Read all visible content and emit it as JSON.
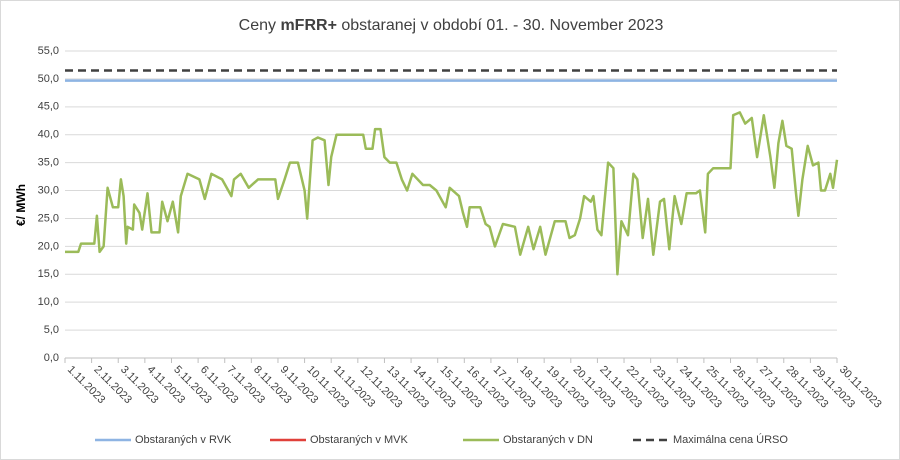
{
  "chart_data": {
    "type": "line",
    "title": [
      {
        "text": "Ceny ",
        "bold": false
      },
      {
        "text": "mFRR+",
        "bold": true
      },
      {
        "text": " obstaranej v období 01. - 30. November 2023",
        "bold": false
      }
    ],
    "y_label": "€/ MWh",
    "xlim": [
      1,
      30
    ],
    "xticks": [
      {
        "value": 1,
        "label": "1.11.2023"
      },
      {
        "value": 2,
        "label": "2.11.2023"
      },
      {
        "value": 3,
        "label": "3.11.2023"
      },
      {
        "value": 4,
        "label": "4.11.2023"
      },
      {
        "value": 5,
        "label": "5.11.2023"
      },
      {
        "value": 6,
        "label": "6.11.2023"
      },
      {
        "value": 7,
        "label": "7.11.2023"
      },
      {
        "value": 8,
        "label": "8.11.2023"
      },
      {
        "value": 9,
        "label": "9.11.2023"
      },
      {
        "value": 10,
        "label": "10.11.2023"
      },
      {
        "value": 11,
        "label": "11.11.2023"
      },
      {
        "value": 12,
        "label": "12.11.2023"
      },
      {
        "value": 13,
        "label": "13.11.2023"
      },
      {
        "value": 14,
        "label": "14.11.2023"
      },
      {
        "value": 15,
        "label": "15.11.2023"
      },
      {
        "value": 16,
        "label": "16.11.2023"
      },
      {
        "value": 17,
        "label": "17.11.2023"
      },
      {
        "value": 18,
        "label": "18.11.2023"
      },
      {
        "value": 19,
        "label": "19.11.2023"
      },
      {
        "value": 20,
        "label": "20.11.2023"
      },
      {
        "value": 21,
        "label": "21.11.2023"
      },
      {
        "value": 22,
        "label": "22.11.2023"
      },
      {
        "value": 23,
        "label": "23.11.2023"
      },
      {
        "value": 24,
        "label": "24.11.2023"
      },
      {
        "value": 25,
        "label": "25.11.2023"
      },
      {
        "value": 26,
        "label": "26.11.2023"
      },
      {
        "value": 27,
        "label": "27.11.2023"
      },
      {
        "value": 28,
        "label": "28.11.2023"
      },
      {
        "value": 29,
        "label": "29.11.2023"
      },
      {
        "value": 30,
        "label": "30.11.2023"
      }
    ],
    "ylim": [
      0,
      55
    ],
    "yticks": [
      {
        "value": 0,
        "label": "0,0"
      },
      {
        "value": 5,
        "label": "5,0"
      },
      {
        "value": 10,
        "label": "10,0"
      },
      {
        "value": 15,
        "label": "15,0"
      },
      {
        "value": 20,
        "label": "20,0"
      },
      {
        "value": 25,
        "label": "25,0"
      },
      {
        "value": 30,
        "label": "30,0"
      },
      {
        "value": 35,
        "label": "35,0"
      },
      {
        "value": 40,
        "label": "40,0"
      },
      {
        "value": 45,
        "label": "45,0"
      },
      {
        "value": 50,
        "label": "50,0"
      },
      {
        "value": 55,
        "label": "55,0"
      }
    ],
    "grid": true,
    "legend": "bottom",
    "series": [
      {
        "name": "Obstaraných v RVK",
        "color": "#8eb4e3",
        "dash": false,
        "x": [
          1,
          30
        ],
        "values": [
          49.7,
          49.7
        ]
      },
      {
        "name": "Obstaraných v MVK",
        "color": "#e0403a",
        "dash": false,
        "x": [],
        "values": []
      },
      {
        "name": "Obstaraných v DN",
        "color": "#9bbb59",
        "dash": false,
        "x": [
          1.0,
          1.5,
          1.6,
          2.1,
          2.2,
          2.3,
          2.45,
          2.6,
          2.8,
          3.0,
          3.1,
          3.2,
          3.3,
          3.35,
          3.55,
          3.6,
          3.8,
          3.9,
          4.1,
          4.25,
          4.55,
          4.65,
          4.85,
          5.05,
          5.25,
          5.35,
          5.6,
          6.05,
          6.25,
          6.5,
          6.9,
          7.25,
          7.35,
          7.6,
          7.9,
          8.25,
          8.9,
          9.0,
          9.25,
          9.45,
          9.75,
          10.0,
          10.1,
          10.3,
          10.5,
          10.75,
          10.9,
          11.0,
          11.2,
          12.2,
          12.3,
          12.55,
          12.65,
          12.85,
          13.0,
          13.2,
          13.45,
          13.65,
          13.85,
          14.05,
          14.45,
          14.7,
          14.95,
          15.3,
          15.45,
          15.8,
          15.95,
          16.1,
          16.2,
          16.6,
          16.8,
          16.95,
          17.15,
          17.45,
          17.9,
          18.1,
          18.4,
          18.6,
          18.85,
          19.05,
          19.4,
          19.8,
          19.95,
          20.15,
          20.35,
          20.5,
          20.75,
          20.85,
          21.0,
          21.15,
          21.4,
          21.6,
          21.75,
          21.9,
          22.15,
          22.35,
          22.5,
          22.7,
          22.9,
          23.1,
          23.35,
          23.5,
          23.7,
          23.9,
          24.15,
          24.35,
          24.7,
          24.85,
          25.05,
          25.15,
          25.35,
          26.0,
          26.1,
          26.35,
          26.55,
          26.8,
          27.0,
          27.25,
          27.5,
          27.65,
          27.8,
          27.95,
          28.1,
          28.3,
          28.45,
          28.55,
          28.7,
          28.9,
          29.1,
          29.3,
          29.4,
          29.55,
          29.75,
          29.85,
          30.0
        ],
        "values": [
          19,
          19,
          20.5,
          20.5,
          25.5,
          19,
          20,
          30.5,
          27,
          27,
          32,
          29,
          20.5,
          23.5,
          23,
          27.5,
          26,
          23,
          29.5,
          22.5,
          22.5,
          28,
          24.5,
          28,
          22.5,
          29,
          33,
          32,
          28.5,
          33,
          32,
          29,
          32,
          33,
          30.5,
          32,
          32,
          28.5,
          32,
          35,
          35,
          30,
          25,
          39,
          39.5,
          39,
          31,
          36,
          40,
          40,
          37.5,
          37.5,
          41,
          41,
          36,
          35,
          35,
          32,
          30,
          33,
          31,
          31,
          30,
          27,
          30.5,
          29,
          26,
          23.5,
          27,
          27,
          24,
          23.5,
          20,
          24,
          23.5,
          18.5,
          23.5,
          19.5,
          23.5,
          18.5,
          24.5,
          24.5,
          21.5,
          22,
          25,
          29,
          28,
          29,
          23,
          22,
          35,
          34,
          15,
          24.5,
          22,
          33,
          32,
          21.5,
          28.5,
          18.5,
          28,
          28.5,
          19.5,
          29,
          24,
          29.5,
          29.5,
          30,
          22.5,
          33,
          34,
          34,
          43.5,
          44,
          42,
          43,
          36,
          43.5,
          36,
          30.5,
          38.5,
          42.5,
          38,
          37.5,
          30,
          25.5,
          32,
          38,
          34.5,
          35,
          30,
          30,
          33,
          30.5,
          35.5
        ]
      },
      {
        "name": "Maximálna cena ÚRSO",
        "color": "#404040",
        "dash": true,
        "x": [
          1,
          30
        ],
        "values": [
          51.5,
          51.5
        ]
      }
    ]
  }
}
